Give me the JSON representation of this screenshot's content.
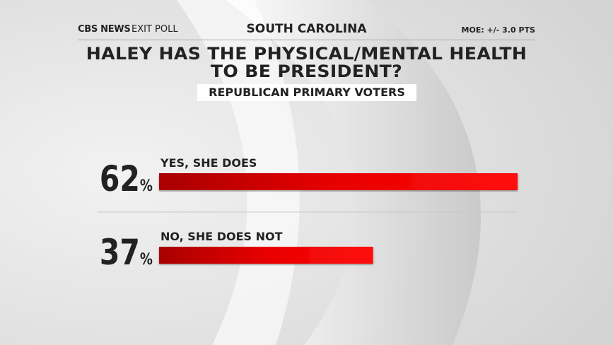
{
  "chart_data": {
    "type": "bar",
    "orientation": "horizontal",
    "logo": "CBS NEWS",
    "logo_label": "EXIT POLL",
    "region": "SOUTH CAROLINA",
    "moe": "MOE: +/- 3.0 PTS",
    "title": "HALEY HAS THE PHYSICAL/MENTAL HEALTH TO BE PRESIDENT?",
    "subtitle": "REPUBLICAN PRIMARY VOTERS",
    "categories": [
      "YES, SHE DOES",
      "NO, SHE DOES NOT"
    ],
    "values": [
      62,
      37
    ],
    "value_labels": [
      "62%",
      "37%"
    ],
    "color": "#e80000"
  }
}
